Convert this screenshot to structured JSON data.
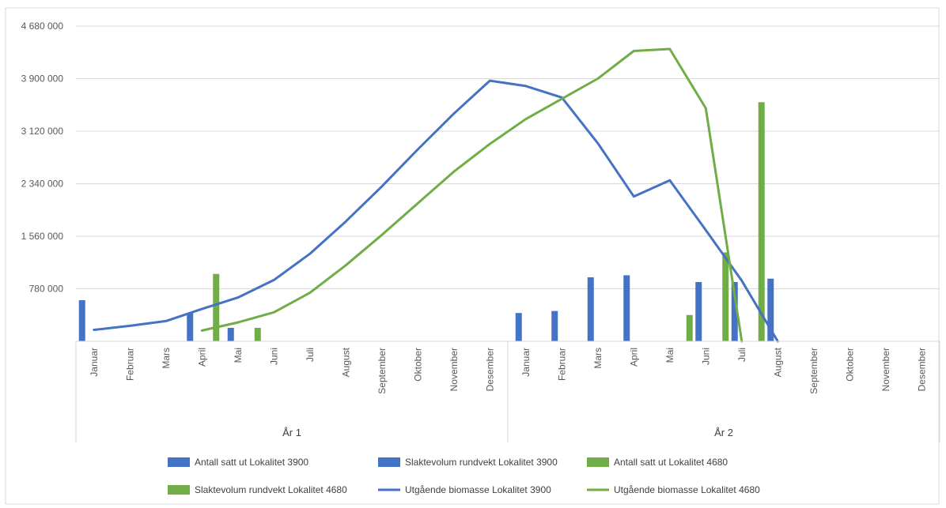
{
  "chart_data": {
    "type": "bar",
    "title": "",
    "xlabel": "",
    "ylabel": "",
    "ylim": [
      0,
      4680000
    ],
    "yticks": [
      0,
      780000,
      1560000,
      2340000,
      3120000,
      3900000,
      4680000
    ],
    "ytick_labels": [
      "",
      "780 000",
      "1 560 000",
      "2 340 000",
      "3 120 000",
      "3 900 000",
      "4 680 000"
    ],
    "categories": [
      "Januar",
      "Februar",
      "Mars",
      "April",
      "Mai",
      "Juni",
      "Juli",
      "August",
      "September",
      "Oktober",
      "November",
      "Desember",
      "Januar",
      "Februar",
      "Mars",
      "April",
      "Mai",
      "Juni",
      "Juli",
      "August",
      "September",
      "Oktober",
      "November",
      "Desember"
    ],
    "groups": [
      {
        "label": "År 1",
        "start": 0,
        "end": 12
      },
      {
        "label": "År 2",
        "start": 12,
        "end": 24
      }
    ],
    "grid": true,
    "legend_position": "bottom",
    "series": [
      {
        "name": "Antall satt ut Lokalitet 3900",
        "kind": "bar",
        "color": "#4472c4",
        "slot": 0,
        "values": [
          610000,
          null,
          null,
          420000,
          null,
          null,
          null,
          null,
          null,
          null,
          null,
          null,
          null,
          null,
          null,
          null,
          null,
          null,
          null,
          null,
          null,
          null,
          null,
          null
        ]
      },
      {
        "name": "Slaktevolum rundvekt Lokalitet 3900",
        "kind": "bar",
        "color": "#4472c4",
        "slot": 1,
        "values": [
          null,
          null,
          null,
          null,
          200000,
          null,
          null,
          null,
          null,
          null,
          null,
          null,
          420000,
          450000,
          950000,
          980000,
          null,
          880000,
          880000,
          930000,
          null,
          null,
          null,
          null
        ]
      },
      {
        "name": "Antall satt ut Lokalitet 4680",
        "kind": "bar",
        "color": "#70ad47",
        "slot": 2,
        "values": [
          null,
          null,
          null,
          1000000,
          null,
          null,
          null,
          null,
          null,
          null,
          null,
          null,
          null,
          null,
          null,
          null,
          null,
          null,
          null,
          null,
          null,
          null,
          null,
          null
        ]
      },
      {
        "name": "Slaktevolum rundvekt Lokalitet 4680",
        "kind": "bar",
        "color": "#70ad47",
        "slot": 3,
        "values": [
          null,
          null,
          null,
          null,
          200000,
          null,
          null,
          null,
          null,
          null,
          null,
          null,
          null,
          null,
          null,
          null,
          390000,
          1320000,
          3550000,
          null,
          null,
          null,
          null,
          null
        ]
      },
      {
        "name": "Utgående biomasse Lokalitet 3900",
        "kind": "line",
        "color": "#4472c4",
        "values": [
          170000,
          230000,
          300000,
          480000,
          650000,
          910000,
          1300000,
          1780000,
          2300000,
          2850000,
          3380000,
          3870000,
          3790000,
          3620000,
          2940000,
          2150000,
          2390000,
          1650000,
          900000,
          0,
          null,
          null,
          null,
          null
        ]
      },
      {
        "name": "Utgående biomasse Lokalitet 4680",
        "kind": "line",
        "color": "#70ad47",
        "values": [
          null,
          null,
          null,
          160000,
          280000,
          430000,
          720000,
          1130000,
          1580000,
          2050000,
          2520000,
          2930000,
          3300000,
          3600000,
          3900000,
          4310000,
          4340000,
          3460000,
          0,
          null,
          null,
          null,
          null,
          null
        ]
      }
    ]
  }
}
